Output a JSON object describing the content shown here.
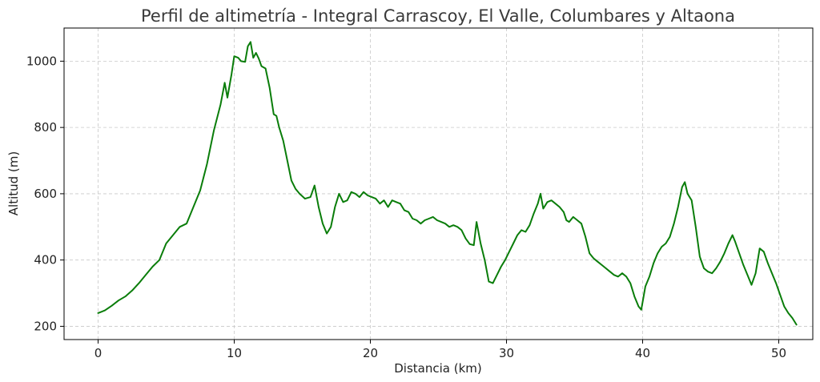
{
  "chart_data": {
    "type": "line",
    "title": "Perfil de altimetría - Integral Carrascoy, El Valle, Columbares y Altaona",
    "xlabel": "Distancia (km)",
    "ylabel": "Altitud (m)",
    "xlim": [
      -2.5,
      52.5
    ],
    "ylim": [
      160,
      1100
    ],
    "x_ticks": [
      0,
      10,
      20,
      30,
      40,
      50
    ],
    "y_ticks": [
      200,
      400,
      600,
      800,
      1000
    ],
    "grid": true,
    "legend": "none",
    "series": [
      {
        "color": "#0a7d0a",
        "points": [
          [
            0.0,
            240
          ],
          [
            0.5,
            248
          ],
          [
            1.0,
            262
          ],
          [
            1.5,
            278
          ],
          [
            2.0,
            290
          ],
          [
            2.5,
            308
          ],
          [
            3.0,
            330
          ],
          [
            3.5,
            355
          ],
          [
            4.0,
            380
          ],
          [
            4.5,
            400
          ],
          [
            5.0,
            450
          ],
          [
            5.5,
            475
          ],
          [
            6.0,
            500
          ],
          [
            6.5,
            510
          ],
          [
            7.0,
            560
          ],
          [
            7.5,
            610
          ],
          [
            8.0,
            690
          ],
          [
            8.5,
            790
          ],
          [
            9.0,
            870
          ],
          [
            9.3,
            935
          ],
          [
            9.5,
            890
          ],
          [
            9.8,
            960
          ],
          [
            10.0,
            1015
          ],
          [
            10.3,
            1010
          ],
          [
            10.5,
            1000
          ],
          [
            10.8,
            998
          ],
          [
            11.0,
            1045
          ],
          [
            11.2,
            1058
          ],
          [
            11.4,
            1010
          ],
          [
            11.6,
            1025
          ],
          [
            11.8,
            1008
          ],
          [
            12.0,
            985
          ],
          [
            12.3,
            978
          ],
          [
            12.6,
            920
          ],
          [
            12.9,
            840
          ],
          [
            13.1,
            835
          ],
          [
            13.3,
            800
          ],
          [
            13.6,
            760
          ],
          [
            13.9,
            700
          ],
          [
            14.2,
            640
          ],
          [
            14.5,
            615
          ],
          [
            14.8,
            600
          ],
          [
            15.2,
            585
          ],
          [
            15.6,
            590
          ],
          [
            15.9,
            625
          ],
          [
            16.2,
            560
          ],
          [
            16.5,
            510
          ],
          [
            16.8,
            480
          ],
          [
            17.1,
            500
          ],
          [
            17.4,
            560
          ],
          [
            17.7,
            600
          ],
          [
            18.0,
            575
          ],
          [
            18.3,
            580
          ],
          [
            18.6,
            605
          ],
          [
            18.9,
            600
          ],
          [
            19.2,
            590
          ],
          [
            19.5,
            605
          ],
          [
            19.8,
            595
          ],
          [
            20.1,
            590
          ],
          [
            20.4,
            585
          ],
          [
            20.7,
            570
          ],
          [
            21.0,
            580
          ],
          [
            21.3,
            560
          ],
          [
            21.6,
            580
          ],
          [
            21.9,
            575
          ],
          [
            22.2,
            570
          ],
          [
            22.5,
            550
          ],
          [
            22.8,
            545
          ],
          [
            23.1,
            525
          ],
          [
            23.4,
            520
          ],
          [
            23.7,
            510
          ],
          [
            24.0,
            520
          ],
          [
            24.3,
            525
          ],
          [
            24.6,
            530
          ],
          [
            24.9,
            520
          ],
          [
            25.2,
            515
          ],
          [
            25.5,
            510
          ],
          [
            25.8,
            500
          ],
          [
            26.1,
            505
          ],
          [
            26.4,
            500
          ],
          [
            26.7,
            490
          ],
          [
            27.0,
            465
          ],
          [
            27.3,
            448
          ],
          [
            27.6,
            445
          ],
          [
            27.8,
            515
          ],
          [
            28.1,
            450
          ],
          [
            28.4,
            400
          ],
          [
            28.7,
            335
          ],
          [
            29.0,
            330
          ],
          [
            29.3,
            355
          ],
          [
            29.6,
            380
          ],
          [
            29.9,
            400
          ],
          [
            30.2,
            425
          ],
          [
            30.5,
            450
          ],
          [
            30.8,
            475
          ],
          [
            31.1,
            490
          ],
          [
            31.4,
            485
          ],
          [
            31.7,
            505
          ],
          [
            32.0,
            540
          ],
          [
            32.3,
            570
          ],
          [
            32.5,
            600
          ],
          [
            32.7,
            555
          ],
          [
            33.0,
            575
          ],
          [
            33.3,
            580
          ],
          [
            33.6,
            570
          ],
          [
            33.9,
            560
          ],
          [
            34.2,
            545
          ],
          [
            34.4,
            520
          ],
          [
            34.6,
            515
          ],
          [
            34.9,
            530
          ],
          [
            35.2,
            520
          ],
          [
            35.5,
            510
          ],
          [
            35.8,
            470
          ],
          [
            36.1,
            420
          ],
          [
            36.4,
            405
          ],
          [
            36.7,
            395
          ],
          [
            37.0,
            385
          ],
          [
            37.3,
            375
          ],
          [
            37.6,
            365
          ],
          [
            37.9,
            355
          ],
          [
            38.2,
            350
          ],
          [
            38.5,
            360
          ],
          [
            38.8,
            350
          ],
          [
            39.1,
            330
          ],
          [
            39.4,
            290
          ],
          [
            39.7,
            260
          ],
          [
            39.9,
            250
          ],
          [
            40.2,
            320
          ],
          [
            40.5,
            350
          ],
          [
            40.8,
            390
          ],
          [
            41.1,
            420
          ],
          [
            41.4,
            440
          ],
          [
            41.7,
            450
          ],
          [
            42.0,
            470
          ],
          [
            42.3,
            510
          ],
          [
            42.6,
            560
          ],
          [
            42.9,
            620
          ],
          [
            43.1,
            635
          ],
          [
            43.3,
            600
          ],
          [
            43.6,
            580
          ],
          [
            43.9,
            500
          ],
          [
            44.2,
            410
          ],
          [
            44.5,
            375
          ],
          [
            44.8,
            365
          ],
          [
            45.1,
            360
          ],
          [
            45.4,
            375
          ],
          [
            45.7,
            395
          ],
          [
            46.0,
            420
          ],
          [
            46.3,
            450
          ],
          [
            46.6,
            475
          ],
          [
            46.8,
            455
          ],
          [
            47.1,
            420
          ],
          [
            47.4,
            385
          ],
          [
            47.7,
            355
          ],
          [
            48.0,
            325
          ],
          [
            48.3,
            360
          ],
          [
            48.6,
            435
          ],
          [
            48.9,
            425
          ],
          [
            49.2,
            390
          ],
          [
            49.5,
            360
          ],
          [
            49.8,
            330
          ],
          [
            50.1,
            295
          ],
          [
            50.4,
            260
          ],
          [
            50.7,
            240
          ],
          [
            51.0,
            225
          ],
          [
            51.3,
            205
          ]
        ]
      }
    ]
  }
}
